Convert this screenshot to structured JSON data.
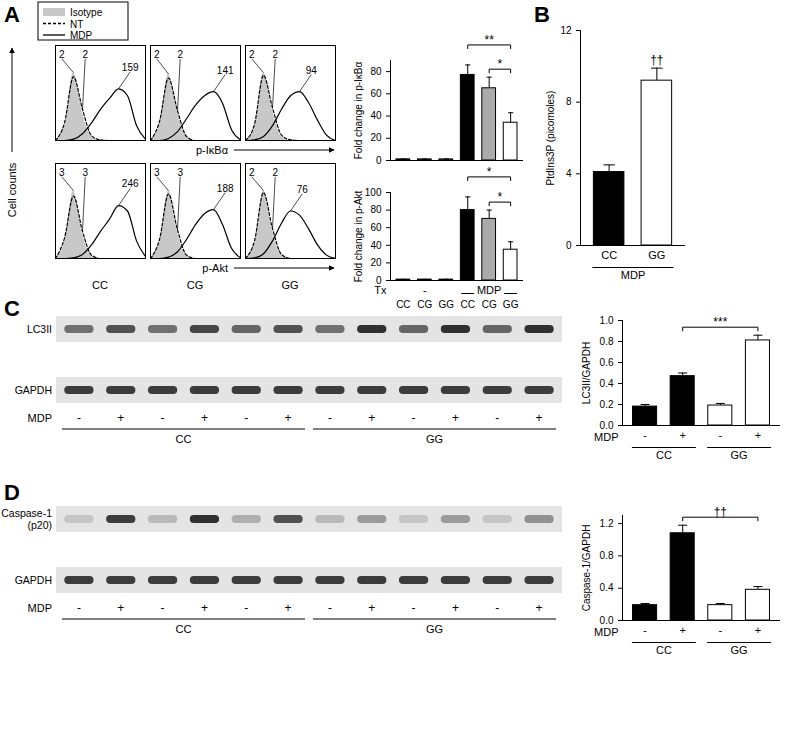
{
  "panel_labels": [
    "A",
    "B",
    "C",
    "D"
  ],
  "flow": {
    "y_label": "Cell counts",
    "x_labels": [
      "p-IκBα",
      "p-Akt"
    ],
    "column_labels": [
      "CC",
      "CG",
      "GG"
    ]
  },
  "chart_data": [
    {
      "type": "line",
      "legend": "top-left",
      "tick_labels": false,
      "xlim": [
        0,
        10
      ],
      "ylim": [
        0,
        140
      ],
      "x": [
        0,
        1,
        2,
        3,
        4,
        5,
        6,
        7,
        8,
        9,
        10
      ],
      "series": [
        {
          "name": "Isotype",
          "type": "area",
          "color": "#c8c8c8",
          "values": [
            0,
            20,
            100,
            40,
            5,
            0,
            0,
            0,
            0,
            0,
            0
          ],
          "mfi": 2
        },
        {
          "name": "NT",
          "color": "#000000",
          "line_style": "dashed",
          "values": [
            0,
            26,
            94,
            46,
            7,
            1,
            0,
            0,
            0,
            0,
            0
          ],
          "mfi": 2
        },
        {
          "name": "MDP",
          "color": "#000000",
          "line_style": "solid",
          "values": [
            0,
            0,
            2,
            10,
            26,
            46,
            62,
            76,
            66,
            22,
            2
          ],
          "mfi": 159
        }
      ]
    },
    {
      "type": "line",
      "tick_labels": false,
      "xlim": [
        0,
        10
      ],
      "ylim": [
        0,
        140
      ],
      "x": [
        0,
        1,
        2,
        3,
        4,
        5,
        6,
        7,
        8,
        9,
        10
      ],
      "series": [
        {
          "name": "Isotype",
          "type": "area",
          "color": "#c8c8c8",
          "values": [
            0,
            22,
            98,
            42,
            5,
            0,
            0,
            0,
            0,
            0,
            0
          ],
          "mfi": 2
        },
        {
          "name": "NT",
          "color": "#000000",
          "line_style": "dashed",
          "values": [
            0,
            28,
            92,
            44,
            6,
            0,
            0,
            0,
            0,
            0,
            0
          ],
          "mfi": 2
        },
        {
          "name": "MDP",
          "color": "#000000",
          "line_style": "solid",
          "values": [
            0,
            0,
            3,
            13,
            32,
            52,
            66,
            72,
            55,
            16,
            1
          ],
          "mfi": 141
        }
      ]
    },
    {
      "type": "line",
      "tick_labels": false,
      "xlim": [
        0,
        10
      ],
      "ylim": [
        0,
        140
      ],
      "x": [
        0,
        1,
        2,
        3,
        4,
        5,
        6,
        7,
        8,
        9,
        10
      ],
      "series": [
        {
          "name": "Isotype",
          "type": "area",
          "color": "#c8c8c8",
          "values": [
            0,
            18,
            100,
            44,
            6,
            0,
            0,
            0,
            0,
            0,
            0
          ],
          "mfi": 2
        },
        {
          "name": "NT",
          "color": "#000000",
          "line_style": "dashed",
          "values": [
            0,
            24,
            96,
            48,
            8,
            1,
            0,
            0,
            0,
            0,
            0
          ],
          "mfi": 2
        },
        {
          "name": "MDP",
          "color": "#000000",
          "line_style": "solid",
          "values": [
            0,
            1,
            6,
            22,
            46,
            66,
            72,
            56,
            30,
            8,
            0
          ],
          "mfi": 94
        }
      ]
    },
    {
      "type": "line",
      "tick_labels": false,
      "xlim": [
        0,
        10
      ],
      "ylim": [
        0,
        140
      ],
      "x": [
        0,
        1,
        2,
        3,
        4,
        5,
        6,
        7,
        8,
        9,
        10
      ],
      "series": [
        {
          "name": "Isotype",
          "type": "area",
          "color": "#c8c8c8",
          "values": [
            0,
            24,
            100,
            36,
            4,
            0,
            0,
            0,
            0,
            0,
            0
          ],
          "mfi": 3
        },
        {
          "name": "NT",
          "color": "#000000",
          "line_style": "dashed",
          "values": [
            0,
            30,
            92,
            40,
            5,
            0,
            0,
            0,
            0,
            0,
            0
          ],
          "mfi": 3
        },
        {
          "name": "MDP",
          "color": "#000000",
          "line_style": "solid",
          "values": [
            0,
            0,
            1,
            6,
            20,
            40,
            58,
            78,
            70,
            26,
            3
          ],
          "mfi": 246
        }
      ]
    },
    {
      "type": "line",
      "tick_labels": false,
      "xlim": [
        0,
        10
      ],
      "ylim": [
        0,
        140
      ],
      "x": [
        0,
        1,
        2,
        3,
        4,
        5,
        6,
        7,
        8,
        9,
        10
      ],
      "series": [
        {
          "name": "Isotype",
          "type": "area",
          "color": "#c8c8c8",
          "values": [
            0,
            22,
            100,
            38,
            4,
            0,
            0,
            0,
            0,
            0,
            0
          ],
          "mfi": 3
        },
        {
          "name": "NT",
          "color": "#000000",
          "line_style": "dashed",
          "values": [
            0,
            28,
            95,
            42,
            5,
            0,
            0,
            0,
            0,
            0,
            0
          ],
          "mfi": 3
        },
        {
          "name": "MDP",
          "color": "#000000",
          "line_style": "solid",
          "values": [
            0,
            0,
            2,
            10,
            28,
            50,
            66,
            72,
            50,
            15,
            1
          ],
          "mfi": 188
        }
      ]
    },
    {
      "type": "line",
      "tick_labels": false,
      "xlim": [
        0,
        10
      ],
      "ylim": [
        0,
        140
      ],
      "x": [
        0,
        1,
        2,
        3,
        4,
        5,
        6,
        7,
        8,
        9,
        10
      ],
      "series": [
        {
          "name": "Isotype",
          "type": "area",
          "color": "#c8c8c8",
          "values": [
            0,
            20,
            100,
            40,
            5,
            0,
            0,
            0,
            0,
            0,
            0
          ],
          "mfi": 2
        },
        {
          "name": "NT",
          "color": "#000000",
          "line_style": "dashed",
          "values": [
            0,
            26,
            97,
            44,
            6,
            0,
            0,
            0,
            0,
            0,
            0
          ],
          "mfi": 2
        },
        {
          "name": "MDP",
          "color": "#000000",
          "line_style": "solid",
          "values": [
            0,
            1,
            7,
            26,
            52,
            70,
            64,
            44,
            20,
            5,
            0
          ],
          "mfi": 76
        }
      ]
    },
    {
      "type": "bar",
      "y_label": "Fold change in p-IκBα",
      "tick_labels": "y",
      "categories": [
        "CC",
        "CG",
        "GG",
        "CC",
        "CG",
        "GG"
      ],
      "values": [
        1,
        1,
        1,
        77,
        65,
        34
      ],
      "errors": [
        0.3,
        0.3,
        0.3,
        9,
        10,
        9
      ],
      "colors": [
        "#000000",
        "#aaaaaa",
        "#ffffff",
        "#000000",
        "#aaaaaa",
        "#ffffff"
      ],
      "ylim": [
        0,
        90
      ],
      "yticks": [
        0,
        20,
        40,
        60,
        80
      ],
      "annotations": [
        {
          "text": "**",
          "from": 3,
          "to": 5
        },
        {
          "text": "*",
          "from": 4,
          "to": 5
        }
      ]
    },
    {
      "type": "bar",
      "y_label": "Fold change in p-Akt",
      "categories": [
        "CC",
        "CG",
        "GG",
        "CC",
        "CG",
        "GG"
      ],
      "values": [
        1,
        1,
        1,
        80,
        70,
        35
      ],
      "errors": [
        0.3,
        0.3,
        0.3,
        15,
        10,
        9
      ],
      "colors": [
        "#000000",
        "#aaaaaa",
        "#ffffff",
        "#000000",
        "#aaaaaa",
        "#ffffff"
      ],
      "ylim": [
        0,
        100
      ],
      "yticks": [
        0,
        20,
        40,
        60,
        80,
        100
      ],
      "x_groups_title": "Tx",
      "x_groups": [
        {
          "label": "-",
          "from": 0,
          "to": 2
        },
        {
          "label": "MDP",
          "from": 3,
          "to": 5
        }
      ],
      "annotations": [
        {
          "text": "*",
          "from": 3,
          "to": 5
        },
        {
          "text": "*",
          "from": 4,
          "to": 5
        }
      ]
    },
    {
      "type": "bar",
      "y_label": "PtdIns3P (picomoles)",
      "categories": [
        "CC",
        "GG"
      ],
      "values": [
        4.1,
        9.2
      ],
      "errors": [
        0.4,
        0.7
      ],
      "colors": [
        "#000000",
        "#ffffff"
      ],
      "ylim": [
        0,
        12
      ],
      "yticks": [
        0,
        4,
        8,
        12
      ],
      "x_groups": [
        {
          "label": "MDP",
          "from": 0,
          "to": 1
        }
      ],
      "annotations": [
        {
          "text": "††",
          "at": 1
        }
      ]
    },
    {
      "type": "bar",
      "y_label": "LC3II/GAPDH",
      "x_label": "MDP",
      "categories": [
        "-",
        "+",
        "-",
        "+"
      ],
      "values": [
        0.18,
        0.47,
        0.19,
        0.81
      ],
      "errors": [
        0.02,
        0.03,
        0.02,
        0.05
      ],
      "colors": [
        "#000000",
        "#000000",
        "#ffffff",
        "#ffffff"
      ],
      "ylim": [
        0,
        1
      ],
      "yticks": [
        {
          "value": 0,
          "label": "0.0"
        },
        0.2,
        0.4,
        0.6,
        0.8,
        {
          "value": 1,
          "label": "1.0"
        }
      ],
      "x_groups": [
        {
          "label": "CC",
          "from": 0,
          "to": 1
        },
        {
          "label": "GG",
          "from": 2,
          "to": 3
        }
      ],
      "annotations": [
        {
          "text": "***",
          "from": 1,
          "to": 3
        }
      ]
    },
    {
      "type": "bar",
      "y_label": "Caspase-1/GAPDH",
      "x_label": "MDP",
      "categories": [
        "-",
        "+",
        "-",
        "+"
      ],
      "values": [
        0.19,
        1.08,
        0.19,
        0.38
      ],
      "errors": [
        0.02,
        0.1,
        0.02,
        0.04
      ],
      "colors": [
        "#000000",
        "#000000",
        "#ffffff",
        "#ffffff"
      ],
      "ylim": [
        0,
        1.3
      ],
      "yticks": [
        {
          "value": 0,
          "label": "0.0"
        },
        0.4,
        0.8,
        1.2
      ],
      "x_groups": [
        {
          "label": "CC",
          "from": 0,
          "to": 1
        },
        {
          "label": "GG",
          "from": 2,
          "to": 3
        }
      ],
      "annotations": [
        {
          "text": "††",
          "from": 1,
          "to": 3
        }
      ]
    }
  ],
  "blots": [
    {
      "rows": [
        {
          "label": "LC3II",
          "bands": [
            0.55,
            0.7,
            0.55,
            0.75,
            0.6,
            0.7,
            0.55,
            0.85,
            0.6,
            0.85,
            0.6,
            0.85
          ]
        },
        {
          "label": "GAPDH",
          "bands": [
            0.8,
            0.8,
            0.8,
            0.8,
            0.8,
            0.8,
            0.8,
            0.8,
            0.8,
            0.8,
            0.8,
            0.8
          ]
        }
      ],
      "treatment_label": "MDP",
      "treatment": [
        "-",
        "+",
        "-",
        "+",
        "-",
        "+",
        "-",
        "+",
        "-",
        "+",
        "-",
        "+"
      ],
      "groups": [
        {
          "label": "CC",
          "from": 0,
          "to": 5
        },
        {
          "label": "GG",
          "from": 6,
          "to": 11
        }
      ]
    },
    {
      "rows": [
        {
          "label": "Caspase-1 (p20)",
          "bands": [
            0.15,
            0.8,
            0.2,
            0.85,
            0.25,
            0.7,
            0.2,
            0.35,
            0.15,
            0.35,
            0.15,
            0.4
          ]
        },
        {
          "label": "GAPDH",
          "bands": [
            0.8,
            0.8,
            0.8,
            0.8,
            0.8,
            0.8,
            0.8,
            0.8,
            0.8,
            0.8,
            0.8,
            0.8
          ]
        }
      ],
      "treatment_label": "MDP",
      "treatment": [
        "-",
        "+",
        "-",
        "+",
        "-",
        "+",
        "-",
        "+",
        "-",
        "+",
        "-",
        "+"
      ],
      "groups": [
        {
          "label": "CC",
          "from": 0,
          "to": 5
        },
        {
          "label": "GG",
          "from": 6,
          "to": 11
        }
      ]
    }
  ]
}
